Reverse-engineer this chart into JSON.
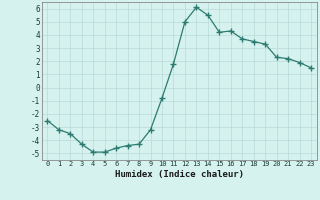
{
  "x": [
    0,
    1,
    2,
    3,
    4,
    5,
    6,
    7,
    8,
    9,
    10,
    11,
    12,
    13,
    14,
    15,
    16,
    17,
    18,
    19,
    20,
    21,
    22,
    23
  ],
  "y": [
    -2.5,
    -3.2,
    -3.5,
    -4.3,
    -4.9,
    -4.9,
    -4.6,
    -4.4,
    -4.3,
    -3.2,
    -0.8,
    1.8,
    5.0,
    6.1,
    5.5,
    4.2,
    4.3,
    3.7,
    3.5,
    3.3,
    2.3,
    2.2,
    1.9,
    1.5
  ],
  "xlim": [
    -0.5,
    23.5
  ],
  "ylim": [
    -5.5,
    6.5
  ],
  "yticks": [
    -5,
    -4,
    -3,
    -2,
    -1,
    0,
    1,
    2,
    3,
    4,
    5,
    6
  ],
  "xticks": [
    0,
    1,
    2,
    3,
    4,
    5,
    6,
    7,
    8,
    9,
    10,
    11,
    12,
    13,
    14,
    15,
    16,
    17,
    18,
    19,
    20,
    21,
    22,
    23
  ],
  "xlabel": "Humidex (Indice chaleur)",
  "line_color": "#2d7b70",
  "marker": "+",
  "marker_size": 4,
  "bg_color": "#d5f2ee",
  "grid_color": "#b8dbd7",
  "axis_color": "#888888"
}
